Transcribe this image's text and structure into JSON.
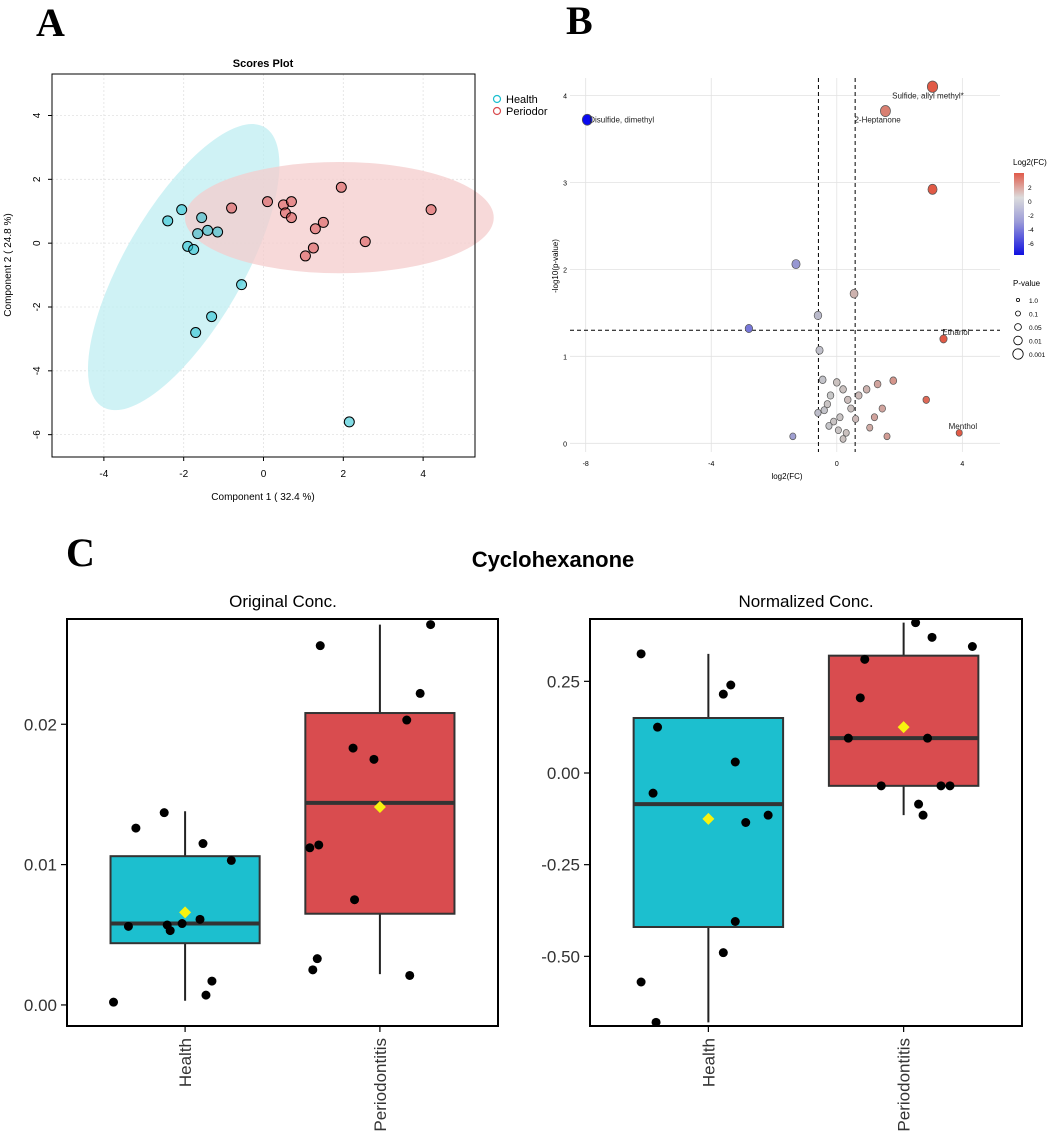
{
  "panel_labels": {
    "a": "A",
    "b": "B",
    "c": "C"
  },
  "colors": {
    "health": "#1cbfcf",
    "periodontitis": "#d94c4f",
    "health_fill": "#bfeef2",
    "perio_fill": "#f4cccc",
    "mean": "#f7f20f",
    "grid": "#e2e2e2"
  },
  "chart_data": [
    {
      "id": "scores",
      "type": "scatter",
      "title": "Scores Plot",
      "xlabel": "Component 1 ( 32.4 %)",
      "ylabel": "Component 2 ( 24.8 %)",
      "xlim": [
        -5.3,
        5.3
      ],
      "ylim": [
        -6.7,
        5.3
      ],
      "xticks": [
        -4,
        -2,
        0,
        2,
        4
      ],
      "yticks": [
        -6,
        -4,
        -2,
        0,
        2,
        4
      ],
      "grid": true,
      "legend": {
        "position": "top-right",
        "entries": [
          "Health",
          "Periodor"
        ]
      },
      "series": [
        {
          "name": "Health",
          "points": [
            [
              -2.4,
              0.7
            ],
            [
              -2.05,
              1.05
            ],
            [
              -1.9,
              -0.1
            ],
            [
              -1.75,
              -0.2
            ],
            [
              -1.65,
              0.3
            ],
            [
              -1.55,
              0.8
            ],
            [
              -1.4,
              0.4
            ],
            [
              -1.15,
              0.35
            ],
            [
              -0.55,
              -1.3
            ],
            [
              -1.7,
              -2.8
            ],
            [
              -1.3,
              -2.3
            ],
            [
              2.15,
              -5.6
            ]
          ],
          "ellipse": {
            "cx": -2.0,
            "cy": -0.75,
            "rx": 4.5,
            "ry": 1.65,
            "angle_deg": -60
          }
        },
        {
          "name": "Periodor",
          "points": [
            [
              -0.8,
              1.1
            ],
            [
              0.1,
              1.3
            ],
            [
              0.5,
              1.2
            ],
            [
              0.55,
              0.95
            ],
            [
              0.7,
              0.8
            ],
            [
              0.7,
              1.3
            ],
            [
              1.3,
              0.45
            ],
            [
              1.5,
              0.65
            ],
            [
              1.25,
              -0.15
            ],
            [
              1.05,
              -0.4
            ],
            [
              1.95,
              1.75
            ],
            [
              2.55,
              0.05
            ],
            [
              4.2,
              1.05
            ]
          ],
          "ellipse": {
            "cx": 1.9,
            "cy": 0.8,
            "rx": 4.3,
            "ry": 1.55,
            "angle_deg": 0
          }
        }
      ]
    },
    {
      "id": "volcano",
      "type": "scatter",
      "xlabel": "log2(FC)",
      "ylabel": "-log10(p-value)",
      "xlim": [
        -8.5,
        5.2
      ],
      "ylim": [
        -0.1,
        4.2
      ],
      "xticks": [
        -8,
        -4,
        0,
        4
      ],
      "yticks": [
        0,
        1,
        2,
        3,
        4
      ],
      "thresholds": {
        "x": [
          -0.585,
          0.585
        ],
        "y": 1.3
      },
      "grid": true,
      "color_legend": {
        "title": "Log2(FC)",
        "ticks": [
          "2",
          "0",
          "-2",
          "-4",
          "-6"
        ]
      },
      "size_legend": {
        "title": "P-value",
        "entries": [
          "1.0",
          "0.1",
          "0.05",
          "0.01",
          "0.001"
        ]
      },
      "labels": [
        {
          "text": "Disulfide, dimethyl",
          "x": -7.95,
          "y": 3.72
        },
        {
          "text": "Sulfide, allyl methyl*",
          "x": 1.7,
          "y": 4.0
        },
        {
          "text": "2-Heptanone",
          "x": 0.5,
          "y": 3.72
        },
        {
          "text": "Ethanol",
          "x": 3.3,
          "y": 1.28
        },
        {
          "text": "Menthol",
          "x": 3.5,
          "y": 0.2
        }
      ],
      "points": [
        [
          -7.95,
          3.72,
          -7
        ],
        [
          3.05,
          4.1,
          3
        ],
        [
          1.55,
          3.82,
          2
        ],
        [
          3.05,
          2.92,
          3
        ],
        [
          -1.3,
          2.06,
          -1.8
        ],
        [
          0.55,
          1.72,
          0.6
        ],
        [
          -0.6,
          1.47,
          -0.5
        ],
        [
          -2.8,
          1.32,
          -3
        ],
        [
          3.4,
          1.2,
          3.4
        ],
        [
          -0.55,
          1.07,
          -0.3
        ],
        [
          -0.45,
          0.73,
          -0.2
        ],
        [
          -0.3,
          0.45,
          0.1
        ],
        [
          0,
          0.7,
          0.2
        ],
        [
          0.2,
          0.62,
          0.2
        ],
        [
          0.35,
          0.5,
          0.3
        ],
        [
          -0.1,
          0.25,
          0.1
        ],
        [
          0.05,
          0.15,
          0.1
        ],
        [
          -0.25,
          0.2,
          -0.1
        ],
        [
          0.45,
          0.4,
          0.2
        ],
        [
          0.7,
          0.55,
          0.4
        ],
        [
          0.95,
          0.62,
          0.6
        ],
        [
          1.3,
          0.68,
          1
        ],
        [
          1.8,
          0.72,
          1.4
        ],
        [
          1.45,
          0.4,
          1
        ],
        [
          1.2,
          0.3,
          1
        ],
        [
          1.05,
          0.18,
          0.8
        ],
        [
          1.6,
          0.08,
          1.2
        ],
        [
          0.2,
          0.05,
          0.2
        ],
        [
          -0.4,
          0.38,
          -0.2
        ],
        [
          -0.6,
          0.35,
          -0.4
        ],
        [
          0.6,
          0.28,
          0.4
        ],
        [
          0.3,
          0.12,
          0.2
        ],
        [
          -0.2,
          0.55,
          0
        ],
        [
          2.85,
          0.5,
          2.6
        ],
        [
          3.9,
          0.12,
          3.9
        ],
        [
          -1.4,
          0.08,
          -1.5
        ],
        [
          0.1,
          0.3,
          0.1
        ]
      ]
    },
    {
      "id": "cyclohexanone",
      "type": "box",
      "title": "Cyclohexanone",
      "categories": [
        "Health",
        "Periodontitis"
      ],
      "panels": [
        {
          "subtitle": "Original Conc.",
          "ylim": [
            -0.0015,
            0.0275
          ],
          "yticks": [
            0.0,
            0.01,
            0.02
          ],
          "ytick_labels": [
            "0.00",
            "0.01",
            "0.02"
          ],
          "boxes": [
            {
              "q1": 0.0044,
              "median": 0.0058,
              "q3": 0.0106,
              "whisker_low": 0.0003,
              "whisker_high": 0.0138,
              "mean": 0.0066
            },
            {
              "q1": 0.0065,
              "median": 0.0144,
              "q3": 0.0208,
              "whisker_low": 0.0022,
              "whisker_high": 0.0271,
              "mean": 0.0141
            }
          ],
          "points": [
            [
              [
                -0.48,
                0.0002
              ],
              [
                -0.38,
                0.0056
              ],
              [
                -0.33,
                0.0126
              ],
              [
                -0.14,
                0.0137
              ],
              [
                -0.12,
                0.0057
              ],
              [
                -0.1,
                0.0053
              ],
              [
                -0.02,
                0.0058
              ],
              [
                0.1,
                0.0061
              ],
              [
                0.12,
                0.0115
              ],
              [
                0.14,
                0.0007
              ],
              [
                0.18,
                0.0017
              ],
              [
                0.31,
                0.0103
              ]
            ],
            [
              [
                -0.47,
                0.0112
              ],
              [
                -0.45,
                0.0025
              ],
              [
                -0.42,
                0.0033
              ],
              [
                -0.41,
                0.0114
              ],
              [
                -0.4,
                0.0256
              ],
              [
                -0.18,
                0.0183
              ],
              [
                -0.17,
                0.0075
              ],
              [
                -0.04,
                0.0175
              ],
              [
                0.18,
                0.0203
              ],
              [
                0.2,
                0.0021
              ],
              [
                0.27,
                0.0222
              ],
              [
                0.34,
                0.0271
              ]
            ]
          ]
        },
        {
          "subtitle": "Normalized Conc.",
          "ylim": [
            -0.69,
            0.42
          ],
          "yticks": [
            -0.5,
            -0.25,
            0.0,
            0.25
          ],
          "ytick_labels": [
            "-0.50",
            "-0.25",
            "0.00",
            "0.25"
          ],
          "boxes": [
            {
              "q1": -0.42,
              "median": -0.085,
              "q3": 0.15,
              "whisker_low": -0.68,
              "whisker_high": 0.325,
              "mean": -0.125
            },
            {
              "q1": -0.035,
              "median": 0.095,
              "q3": 0.32,
              "whisker_low": -0.115,
              "whisker_high": 0.41,
              "mean": 0.125
            }
          ],
          "points": [
            [
              [
                -0.45,
                0.325
              ],
              [
                -0.45,
                -0.57
              ],
              [
                -0.37,
                -0.055
              ],
              [
                -0.34,
                0.125
              ],
              [
                -0.35,
                -0.68
              ],
              [
                0.1,
                0.215
              ],
              [
                0.1,
                -0.49
              ],
              [
                0.15,
                0.24
              ],
              [
                0.18,
                0.03
              ],
              [
                0.18,
                -0.405
              ],
              [
                0.25,
                -0.135
              ],
              [
                0.4,
                -0.115
              ]
            ],
            [
              [
                -0.37,
                0.095
              ],
              [
                -0.29,
                0.205
              ],
              [
                -0.26,
                0.31
              ],
              [
                -0.15,
                -0.035
              ],
              [
                0.08,
                0.41
              ],
              [
                0.1,
                -0.085
              ],
              [
                0.13,
                -0.115
              ],
              [
                0.16,
                0.095
              ],
              [
                0.19,
                0.37
              ],
              [
                0.25,
                -0.035
              ],
              [
                0.31,
                -0.035
              ],
              [
                0.46,
                0.345
              ]
            ]
          ]
        }
      ]
    }
  ]
}
